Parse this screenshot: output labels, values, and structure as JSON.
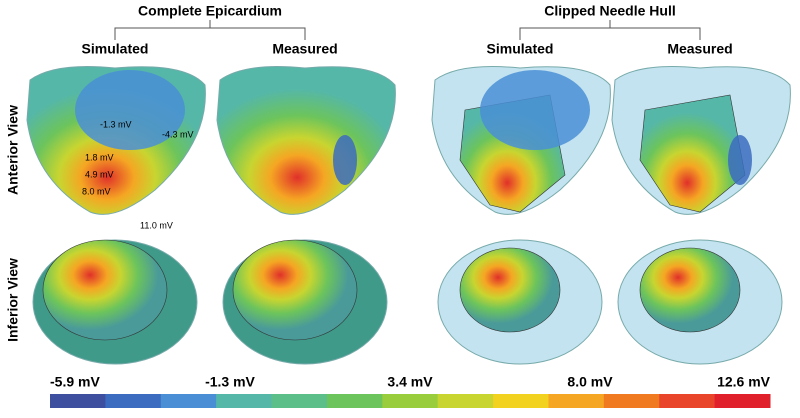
{
  "groups": [
    {
      "title": "Complete Epicardium",
      "columns": [
        "Simulated",
        "Measured"
      ]
    },
    {
      "title": "Clipped Needle Hull",
      "columns": [
        "Simulated",
        "Measured"
      ]
    }
  ],
  "rows": [
    "Anterior View",
    "Inferior View"
  ],
  "annotations": [
    "-1.3 mV",
    "-4.3 mV",
    "1.8 mV",
    "4.9 mV",
    "8.0 mV",
    "11.0 mV"
  ],
  "colorbar": {
    "labels": [
      "-5.9 mV",
      "-1.3 mV",
      "3.4 mV",
      "8.0 mV",
      "12.6 mV"
    ],
    "colors": [
      "#3e4fa0",
      "#3c6cc0",
      "#4a8fd6",
      "#55b7a8",
      "#5cbf8a",
      "#6cc45c",
      "#9acd3c",
      "#c8d530",
      "#f2d21e",
      "#f5a623",
      "#f07a20",
      "#e8452a",
      "#e0202a"
    ]
  }
}
